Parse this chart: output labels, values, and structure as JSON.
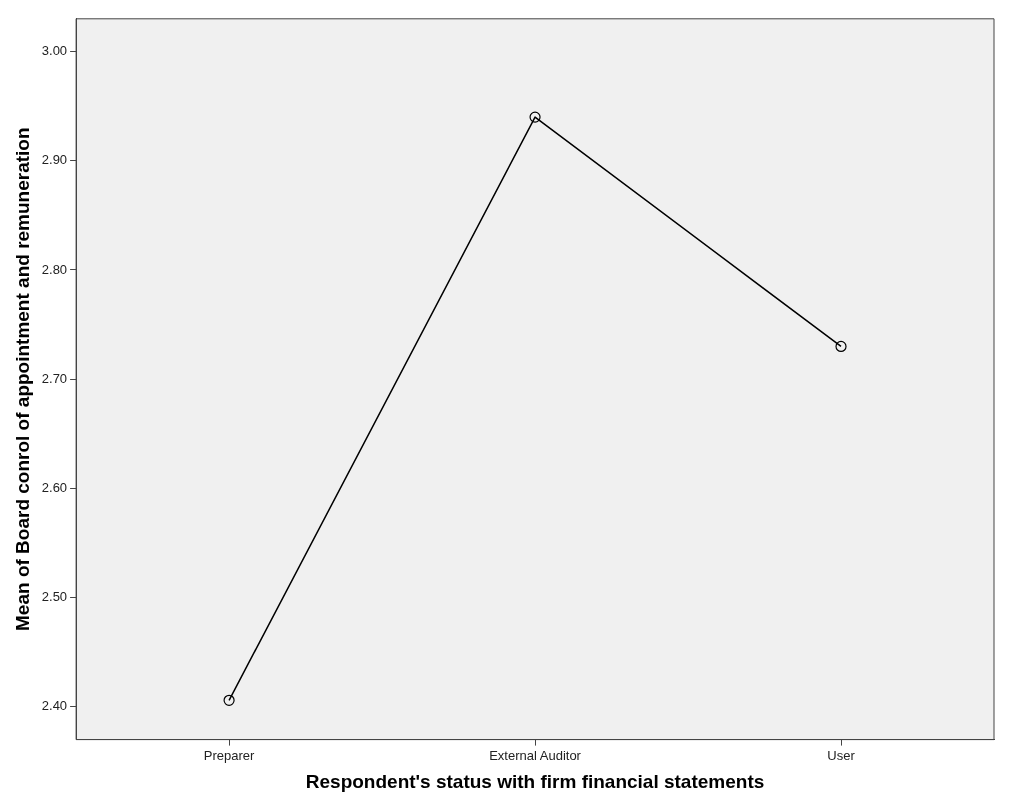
{
  "chart_data": {
    "type": "line",
    "xlabel": "Respondent's status with firm financial statements",
    "ylabel": "Mean of Board conrol of appointment and remuneration",
    "categories": [
      "Preparer",
      "External Auditor",
      "User"
    ],
    "series": [
      {
        "color": "#000000",
        "values": [
          2.406,
          2.94,
          2.73
        ]
      }
    ],
    "ylim": [
      2.37,
      3.03
    ],
    "yticks": [
      {
        "value": 2.4,
        "label": "2.40"
      },
      {
        "value": 2.5,
        "label": "2.50"
      },
      {
        "value": 2.6,
        "label": "2.60"
      },
      {
        "value": 2.7,
        "label": "2.70"
      },
      {
        "value": 2.8,
        "label": "2.80"
      },
      {
        "value": 2.9,
        "label": "2.90"
      },
      {
        "value": 3.0,
        "label": "3.00"
      }
    ],
    "grid": false,
    "legend": false,
    "marker": "circle",
    "line_style": "solid"
  }
}
